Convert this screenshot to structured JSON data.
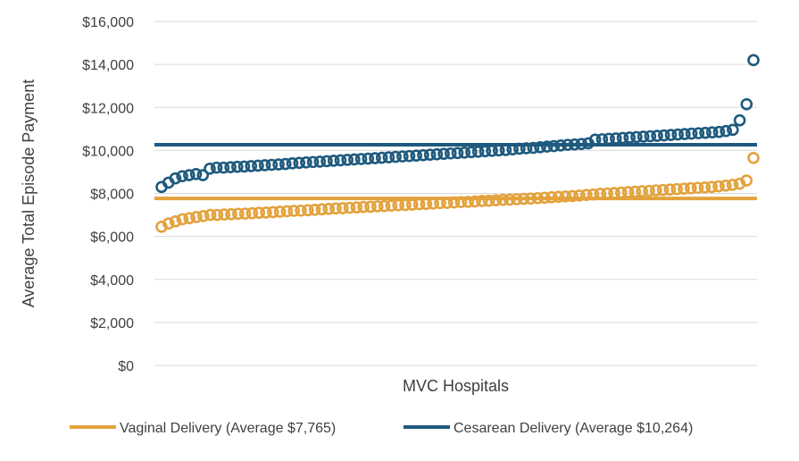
{
  "chart_data": {
    "type": "scatter",
    "xlabel": "MVC Hospitals",
    "ylabel": "Average Total Episode Payment",
    "ylim": [
      0,
      16000
    ],
    "y_ticks": [
      "$0",
      "$2,000",
      "$4,000",
      "$6,000",
      "$8,000",
      "$10,000",
      "$12,000",
      "$14,000",
      "$16,000"
    ],
    "grid": true,
    "legend_position": "bottom",
    "series": [
      {
        "name": "Vaginal Delivery (Average $7,765)",
        "color": "#E3A23C",
        "average": 7765,
        "values": [
          6450,
          6600,
          6700,
          6800,
          6850,
          6900,
          6950,
          7000,
          7000,
          7020,
          7030,
          7050,
          7060,
          7080,
          7100,
          7110,
          7130,
          7150,
          7170,
          7190,
          7200,
          7220,
          7240,
          7260,
          7280,
          7300,
          7310,
          7330,
          7350,
          7370,
          7380,
          7400,
          7410,
          7430,
          7450,
          7460,
          7480,
          7500,
          7510,
          7530,
          7550,
          7560,
          7580,
          7600,
          7610,
          7630,
          7650,
          7660,
          7680,
          7700,
          7710,
          7730,
          7750,
          7760,
          7780,
          7800,
          7820,
          7840,
          7860,
          7880,
          7900,
          7930,
          7950,
          7980,
          8000,
          8020,
          8040,
          8060,
          8080,
          8100,
          8120,
          8140,
          8160,
          8180,
          8200,
          8220,
          8240,
          8260,
          8280,
          8300,
          8330,
          8360,
          8400,
          8450,
          8600,
          9650
        ]
      },
      {
        "name": "Cesarean Delivery (Average $10,264)",
        "color": "#1F5A7E",
        "average": 10264,
        "values": [
          8300,
          8500,
          8700,
          8800,
          8850,
          8900,
          8850,
          9150,
          9200,
          9200,
          9220,
          9240,
          9250,
          9270,
          9290,
          9310,
          9330,
          9350,
          9370,
          9400,
          9420,
          9440,
          9460,
          9480,
          9500,
          9520,
          9540,
          9560,
          9580,
          9600,
          9620,
          9640,
          9660,
          9680,
          9700,
          9720,
          9740,
          9760,
          9780,
          9800,
          9820,
          9840,
          9860,
          9880,
          9900,
          9920,
          9940,
          9960,
          9980,
          10000,
          10020,
          10050,
          10080,
          10100,
          10120,
          10150,
          10180,
          10200,
          10230,
          10260,
          10280,
          10300,
          10330,
          10500,
          10520,
          10540,
          10560,
          10580,
          10600,
          10620,
          10640,
          10660,
          10680,
          10700,
          10720,
          10740,
          10760,
          10780,
          10800,
          10820,
          10840,
          10860,
          10900,
          10960,
          11400,
          12150,
          14200
        ]
      }
    ]
  }
}
